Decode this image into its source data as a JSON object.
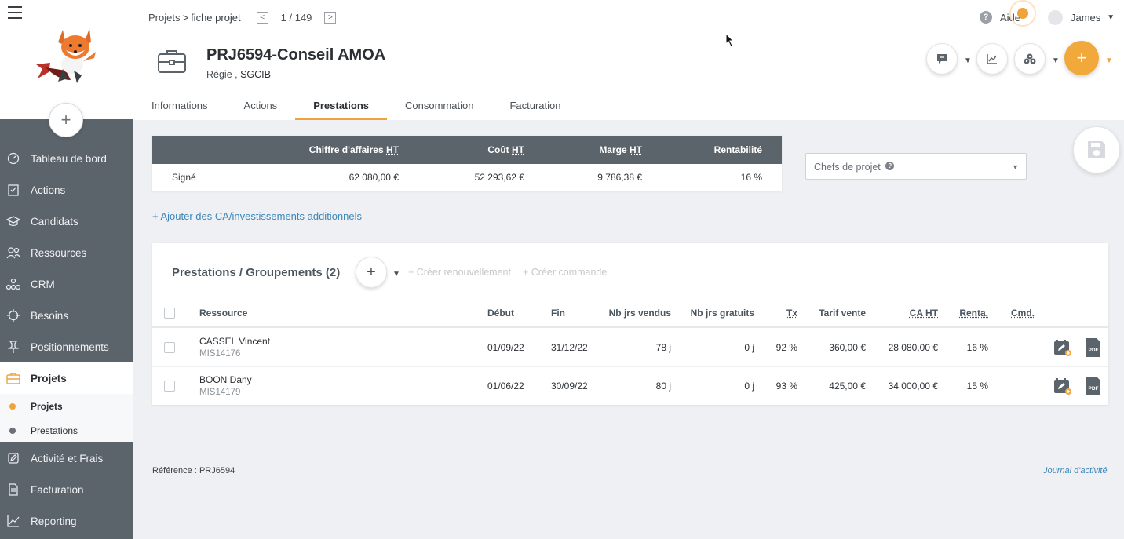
{
  "sidebar": {
    "add_label": "+",
    "items": [
      {
        "label": "Tableau de bord",
        "icon": "gauge-icon"
      },
      {
        "label": "Actions",
        "icon": "checklist-icon"
      },
      {
        "label": "Candidats",
        "icon": "graduation-cap-icon"
      },
      {
        "label": "Ressources",
        "icon": "people-icon"
      },
      {
        "label": "CRM",
        "icon": "sitemap-icon"
      },
      {
        "label": "Besoins",
        "icon": "crosshair-icon"
      },
      {
        "label": "Positionnements",
        "icon": "pin-icon"
      },
      {
        "label": "Projets",
        "icon": "briefcase-icon",
        "active": true
      },
      {
        "label": "Activité et Frais",
        "icon": "edit-icon"
      },
      {
        "label": "Facturation",
        "icon": "document-icon"
      },
      {
        "label": "Reporting",
        "icon": "chart-icon"
      }
    ],
    "sub_items": [
      {
        "label": "Projets",
        "dot": "#f0a23c"
      },
      {
        "label": "Prestations",
        "dot": "#6b7178"
      }
    ]
  },
  "header": {
    "breadcrumb": {
      "root": "Projets",
      "sep": ">",
      "current": "fiche projet"
    },
    "pager": {
      "prev": "<",
      "text": "1 / 149",
      "next": ">"
    },
    "help": {
      "icon": "?",
      "label": "Aide"
    },
    "user": {
      "name": "James",
      "caret": "▼"
    },
    "project": {
      "title": "PRJ6594-Conseil AMOA",
      "type": "Régie ,",
      "client": "SGCIB"
    },
    "fab_label": "+",
    "tabs": [
      "Informations",
      "Actions",
      "Prestations",
      "Consommation",
      "Facturation"
    ],
    "active_tab": "Prestations"
  },
  "summary": {
    "headers": {
      "ca": "Chiffre d'affaires",
      "cout": "Coût",
      "marge": "Marge",
      "ht": "HT",
      "renta": "Rentabilité"
    },
    "row": {
      "label": "Signé",
      "ca": "62 080,00 €",
      "cout": "52 293,62 €",
      "marge": "9 786,38 €",
      "renta": "16 %"
    }
  },
  "chefs_select": {
    "placeholder": "Chefs de projet",
    "help": "?",
    "arrow": "▼"
  },
  "add_ca_link": "+ Ajouter des CA/investissements additionnels",
  "panel": {
    "title": "Prestations / Groupements (2)",
    "add": "+",
    "caret": "▼",
    "renew": "+ Créer renouvellement",
    "order": "+ Créer commande",
    "columns": {
      "ressource": "Ressource",
      "debut": "Début",
      "fin": "Fin",
      "vendus": "Nb jrs vendus",
      "gratuits": "Nb jrs gratuits",
      "tx": "Tx",
      "tarif": "Tarif vente",
      "ca": "CA HT",
      "renta": "Renta.",
      "cmd": "Cmd."
    },
    "rows": [
      {
        "name": "CASSEL Vincent",
        "ref": "MIS14176",
        "debut": "01/09/22",
        "fin": "31/12/22",
        "vendus": "78 j",
        "gratuits": "0 j",
        "tx": "92 %",
        "tarif": "360,00 €",
        "ca": "28 080,00 €",
        "renta": "16 %",
        "pdf": "PDF"
      },
      {
        "name": "BOON Dany",
        "ref": "MIS14179",
        "debut": "01/06/22",
        "fin": "30/09/22",
        "vendus": "80 j",
        "gratuits": "0 j",
        "tx": "93 %",
        "tarif": "425,00 €",
        "ca": "34 000,00 €",
        "renta": "15 %",
        "pdf": "PDF"
      }
    ]
  },
  "footer": {
    "ref_label": "Référence :",
    "ref_value": "PRJ6594",
    "journal": "Journal d'activité"
  },
  "colors": {
    "accent": "#f0a23c",
    "sidebar": "#5b636b",
    "link": "#3d86b8"
  }
}
